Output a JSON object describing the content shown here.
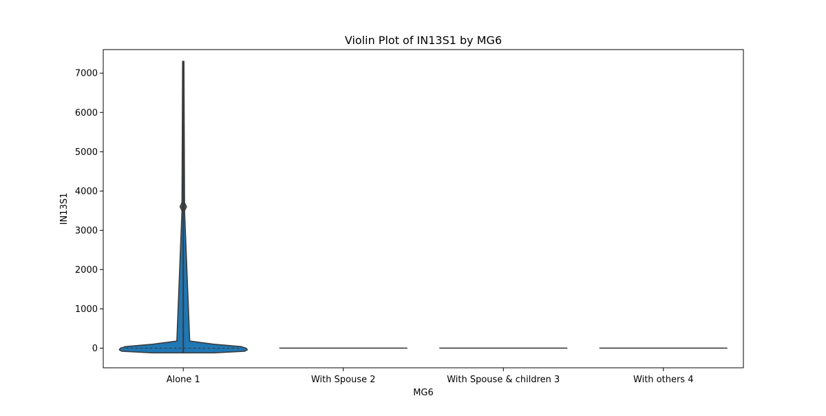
{
  "chart_data": {
    "type": "violin",
    "title": "Violin Plot of IN13S1 by MG6",
    "xlabel": "MG6",
    "ylabel": "IN13S1",
    "categories": [
      "Alone 1",
      "With Spouse 2",
      "With Spouse & children 3",
      "With others 4"
    ],
    "ylim": [
      -500,
      7600
    ],
    "yticks": [
      0,
      1000,
      2000,
      3000,
      4000,
      5000,
      6000,
      7000
    ],
    "grid": false,
    "violins": [
      {
        "category": "Alone 1",
        "min": -120,
        "max": 7300,
        "median": 0,
        "q1": -10,
        "q3": 10,
        "outlier_cluster": 3600,
        "density": [
          {
            "y": -120,
            "w": 0.48
          },
          {
            "y": -80,
            "w": 0.96
          },
          {
            "y": -40,
            "w": 1.0
          },
          {
            "y": 0,
            "w": 0.98
          },
          {
            "y": 40,
            "w": 0.9
          },
          {
            "y": 100,
            "w": 0.48
          },
          {
            "y": 180,
            "w": 0.1
          },
          {
            "y": 3500,
            "w": 0.02
          },
          {
            "y": 3600,
            "w": 0.05
          },
          {
            "y": 3700,
            "w": 0.02
          },
          {
            "y": 7300,
            "w": 0.01
          }
        ]
      },
      {
        "category": "With Spouse 2",
        "min": 0,
        "max": 0,
        "median": 0
      },
      {
        "category": "With Spouse & children 3",
        "min": 0,
        "max": 0,
        "median": 0
      },
      {
        "category": "With others 4",
        "min": 0,
        "max": 0,
        "median": 0
      }
    ],
    "colors": {
      "violin_fill": "#1f77b4",
      "line": "#3b3b3b",
      "axis": "#000000"
    }
  }
}
